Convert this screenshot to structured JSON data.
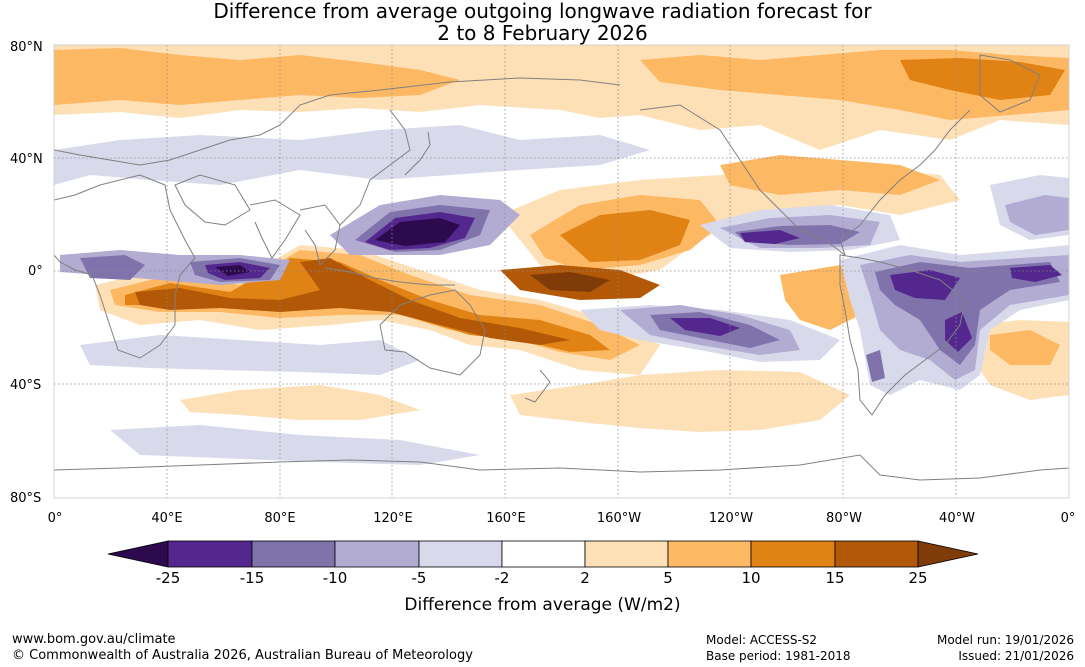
{
  "header": {
    "title_line1": "Difference from average outgoing longwave radiation forecast for",
    "title_line2": "2 to 8 February 2026"
  },
  "map": {
    "lat_labels": [
      "80°N",
      "40°N",
      "0°",
      "40°S",
      "80°S"
    ],
    "lon_labels": [
      "0°",
      "40°E",
      "80°E",
      "120°E",
      "160°E",
      "160°W",
      "120°W",
      "80°W",
      "40°W",
      "0°"
    ],
    "ocean_color": "#ffffff",
    "coastline_color": "#808080"
  },
  "colorbar": {
    "ticks": [
      "-25",
      "-15",
      "-10",
      "-5",
      "-2",
      "2",
      "5",
      "10",
      "15",
      "25"
    ],
    "colors": [
      "#2d0a4e",
      "#54278f",
      "#8073ac",
      "#b2abd2",
      "#d8daeb",
      "#ffffff",
      "#fee0b6",
      "#fdb863",
      "#e08214",
      "#b35806",
      "#7f3b08"
    ],
    "title": "Difference from average (W/m2)"
  },
  "footer": {
    "website": "www.bom.gov.au/climate",
    "copyright": "© Commonwealth of Australia 2026, Australian Bureau of Meteorology",
    "model": "Model: ACCESS-S2",
    "base_period": "Base period: 1981-2018",
    "model_run": "Model run: 19/01/2026",
    "issued": "Issued: 21/01/2026"
  }
}
